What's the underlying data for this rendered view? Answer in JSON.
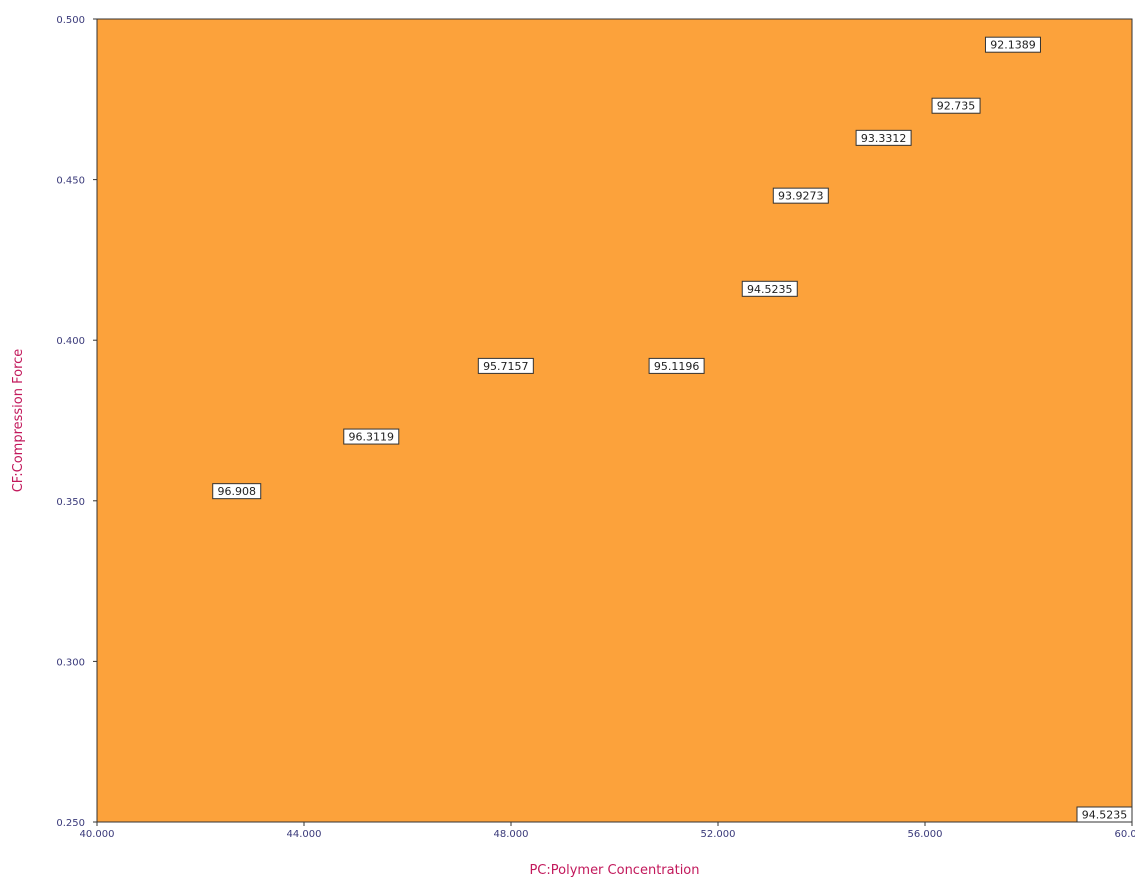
{
  "chart_data": {
    "type": "contour",
    "xlabel": "PC:Polymer Concentration",
    "ylabel": "CF:Compression Force",
    "xlim": [
      40,
      60
    ],
    "ylim": [
      0.25,
      0.5
    ],
    "x_ticks": [
      "40.000",
      "44.000",
      "48.000",
      "52.000",
      "56.000",
      "60.000"
    ],
    "y_ticks": [
      "0.250",
      "0.300",
      "0.350",
      "0.400",
      "0.450",
      "0.500"
    ],
    "contour_levels": [
      92.1389,
      92.735,
      93.3312,
      93.9273,
      94.5235,
      95.1196,
      95.7157,
      96.3119,
      96.908
    ],
    "band_colors": [
      "#cc00cc",
      "#b060d0",
      "#cc90dc",
      "#e6c6e0",
      "#fdf4dc",
      "#fde3b6",
      "#fdcb88",
      "#fdb55b",
      "#fca23b",
      "#fb8e0c"
    ],
    "contour_labels": [
      {
        "text": "92.1389",
        "x": 57.7,
        "y": 0.492
      },
      {
        "text": "92.735",
        "x": 56.6,
        "y": 0.473
      },
      {
        "text": "93.3312",
        "x": 55.2,
        "y": 0.463
      },
      {
        "text": "93.9273",
        "x": 53.6,
        "y": 0.445
      },
      {
        "text": "94.5235",
        "x": 53.0,
        "y": 0.416
      },
      {
        "text": "95.1196",
        "x": 51.2,
        "y": 0.392
      },
      {
        "text": "95.7157",
        "x": 47.9,
        "y": 0.392
      },
      {
        "text": "96.3119",
        "x": 45.3,
        "y": 0.37
      },
      {
        "text": "96.908",
        "x": 42.7,
        "y": 0.353
      },
      {
        "text": "94.5235",
        "x": 59.6,
        "y": 0.252
      }
    ]
  }
}
